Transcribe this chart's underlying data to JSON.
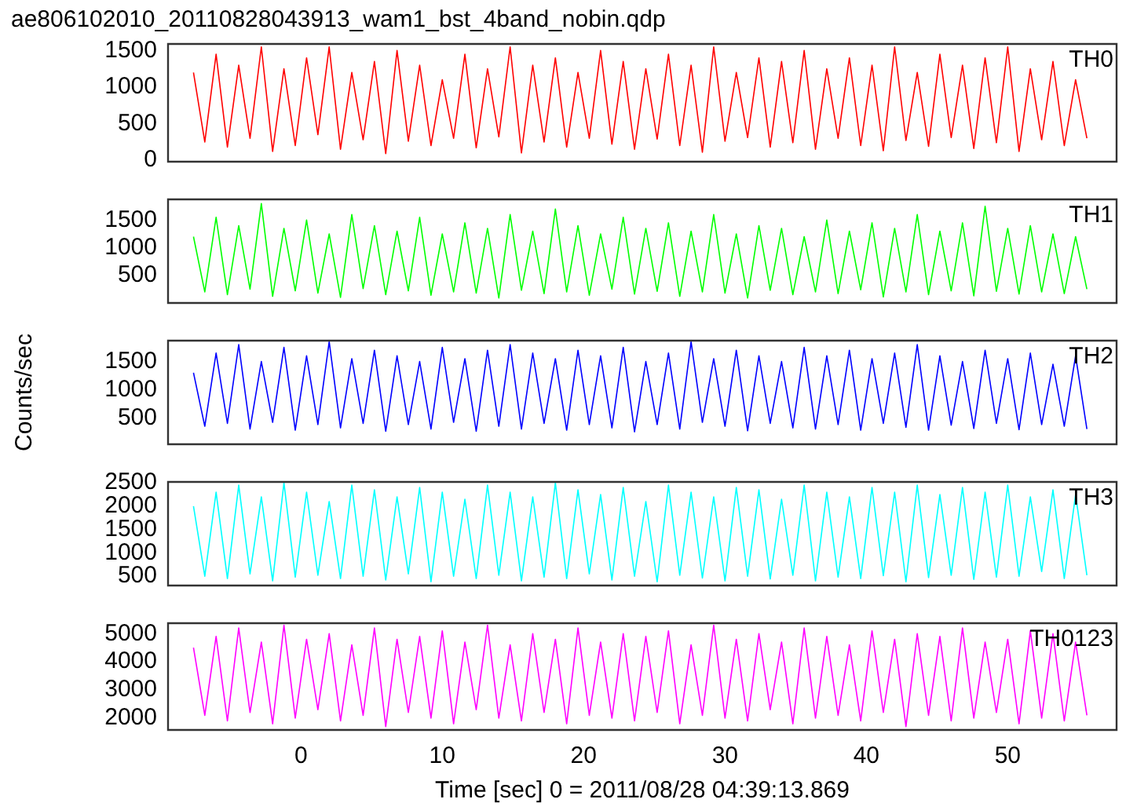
{
  "chart_data": [
    {
      "type": "line",
      "title": "ae806102010_20110828043913_wam1_bst_4band_nobin.qdp",
      "annotations": [
        "TH0"
      ],
      "tick_labels": "y",
      "xlim": [
        -9.4,
        57.7
      ],
      "xticks": [
        0,
        10,
        20,
        30,
        40,
        50
      ],
      "ylim": [
        -20,
        1590
      ],
      "yticks": [
        0,
        500,
        1000,
        1500
      ],
      "x": [
        -7.6,
        -6.8,
        -6,
        -5.2,
        -4.4,
        -3.6,
        -2.8,
        -2,
        -1.2,
        -0.4,
        0.4,
        1.2,
        2,
        2.8,
        3.6,
        4.4,
        5.2,
        6,
        6.8,
        7.6,
        8.4,
        9.2,
        10,
        10.8,
        11.6,
        12.4,
        13.2,
        14,
        14.8,
        15.6,
        16.4,
        17.2,
        18,
        18.8,
        19.6,
        20.4,
        21.2,
        22,
        22.8,
        23.6,
        24.4,
        25.2,
        26,
        26.8,
        27.6,
        28.4,
        29.2,
        30,
        30.8,
        31.6,
        32.4,
        33.2,
        34,
        34.8,
        35.6,
        36.4,
        37.2,
        38,
        38.8,
        39.6,
        40.4,
        41.2,
        42,
        42.8,
        43.6,
        44.4,
        45.2,
        46,
        46.8,
        47.6,
        48.4,
        49.2,
        50,
        50.8,
        51.6,
        52.4,
        53.2,
        54,
        54.8,
        55.6
      ],
      "series": [
        {
          "color": "#ff0000",
          "values": [
            1200,
            250,
            1450,
            180,
            1300,
            300,
            1550,
            120,
            1250,
            200,
            1400,
            350,
            1550,
            150,
            1200,
            280,
            1350,
            90,
            1500,
            260,
            1300,
            200,
            1100,
            300,
            1450,
            170,
            1250,
            320,
            1550,
            100,
            1300,
            250,
            1400,
            180,
            1200,
            300,
            1500,
            220,
            1350,
            150,
            1250,
            290,
            1450,
            200,
            1300,
            110,
            1550,
            260,
            1200,
            310,
            1400,
            180,
            1350,
            240,
            1500,
            150,
            1250,
            300,
            1400,
            200,
            1300,
            130,
            1550,
            270,
            1200,
            190,
            1450,
            310,
            1300,
            160,
            1400,
            240,
            1550,
            120,
            1250,
            280,
            1350,
            200,
            1100,
            300
          ]
        }
      ]
    },
    {
      "type": "line",
      "annotations": [
        "TH1"
      ],
      "tick_labels": "y",
      "xlim": [
        -9.4,
        57.7
      ],
      "xticks": [
        0,
        10,
        20,
        30,
        40,
        50
      ],
      "ylim": [
        0,
        1875
      ],
      "yticks": [
        500,
        1000,
        1500
      ],
      "x": [
        -7.6,
        -6.8,
        -6,
        -5.2,
        -4.4,
        -3.6,
        -2.8,
        -2,
        -1.2,
        -0.4,
        0.4,
        1.2,
        2,
        2.8,
        3.6,
        4.4,
        5.2,
        6,
        6.8,
        7.6,
        8.4,
        9.2,
        10,
        10.8,
        11.6,
        12.4,
        13.2,
        14,
        14.8,
        15.6,
        16.4,
        17.2,
        18,
        18.8,
        19.6,
        20.4,
        21.2,
        22,
        22.8,
        23.6,
        24.4,
        25.2,
        26,
        26.8,
        27.6,
        28.4,
        29.2,
        30,
        30.8,
        31.6,
        32.4,
        33.2,
        34,
        34.8,
        35.6,
        36.4,
        37.2,
        38,
        38.8,
        39.6,
        40.4,
        41.2,
        42,
        42.8,
        43.6,
        44.4,
        45.2,
        46,
        46.8,
        47.6,
        48.4,
        49.2,
        50,
        50.8,
        51.6,
        52.4,
        53.2,
        54,
        54.8,
        55.6
      ],
      "series": [
        {
          "color": "#00ff00",
          "values": [
            1200,
            200,
            1550,
            150,
            1400,
            250,
            1800,
            120,
            1350,
            220,
            1500,
            180,
            1250,
            100,
            1600,
            260,
            1400,
            150,
            1300,
            220,
            1550,
            140,
            1250,
            200,
            1450,
            180,
            1350,
            90,
            1600,
            230,
            1300,
            170,
            1700,
            200,
            1400,
            140,
            1250,
            250,
            1550,
            160,
            1350,
            210,
            1450,
            120,
            1300,
            200,
            1600,
            180,
            1250,
            90,
            1400,
            230,
            1350,
            150,
            1200,
            200,
            1500,
            170,
            1300,
            240,
            1450,
            110,
            1350,
            200,
            1600,
            150,
            1300,
            220,
            1450,
            130,
            1750,
            210,
            1350,
            160,
            1400,
            200,
            1250,
            170,
            1200,
            250
          ]
        }
      ]
    },
    {
      "type": "line",
      "annotations": [
        "TH2"
      ],
      "ylabel": "Counts/sec",
      "tick_labels": "y",
      "xlim": [
        -9.4,
        57.7
      ],
      "xticks": [
        0,
        10,
        20,
        30,
        40,
        50
      ],
      "ylim": [
        30,
        1870
      ],
      "yticks": [
        500,
        1000,
        1500
      ],
      "x": [
        -7.6,
        -6.8,
        -6,
        -5.2,
        -4.4,
        -3.6,
        -2.8,
        -2,
        -1.2,
        -0.4,
        0.4,
        1.2,
        2,
        2.8,
        3.6,
        4.4,
        5.2,
        6,
        6.8,
        7.6,
        8.4,
        9.2,
        10,
        10.8,
        11.6,
        12.4,
        13.2,
        14,
        14.8,
        15.6,
        16.4,
        17.2,
        18,
        18.8,
        19.6,
        20.4,
        21.2,
        22,
        22.8,
        23.6,
        24.4,
        25.2,
        26,
        26.8,
        27.6,
        28.4,
        29.2,
        30,
        30.8,
        31.6,
        32.4,
        33.2,
        34,
        34.8,
        35.6,
        36.4,
        37.2,
        38,
        38.8,
        39.6,
        40.4,
        41.2,
        42,
        42.8,
        43.6,
        44.4,
        45.2,
        46,
        46.8,
        47.6,
        48.4,
        49.2,
        50,
        50.8,
        51.6,
        52.4,
        53.2,
        54,
        54.8,
        55.6
      ],
      "series": [
        {
          "color": "#0000ff",
          "values": [
            1300,
            350,
            1650,
            400,
            1800,
            300,
            1500,
            420,
            1750,
            280,
            1600,
            380,
            1850,
            320,
            1550,
            400,
            1700,
            260,
            1600,
            380,
            1500,
            300,
            1750,
            420,
            1550,
            260,
            1700,
            350,
            1800,
            300,
            1650,
            400,
            1550,
            280,
            1700,
            380,
            1600,
            320,
            1750,
            250,
            1500,
            380,
            1650,
            300,
            1850,
            420,
            1550,
            350,
            1700,
            270,
            1600,
            400,
            1500,
            320,
            1750,
            300,
            1600,
            380,
            1700,
            280,
            1550,
            400,
            1650,
            330,
            1800,
            280,
            1600,
            370,
            1500,
            310,
            1700,
            400,
            1550,
            290,
            1650,
            380,
            1450,
            350,
            1600,
            300
          ]
        }
      ]
    },
    {
      "type": "line",
      "annotations": [
        "TH3"
      ],
      "tick_labels": "y",
      "xlim": [
        -9.4,
        57.7
      ],
      "xticks": [
        0,
        10,
        20,
        30,
        40,
        50
      ],
      "ylim": [
        300,
        2520
      ],
      "yticks": [
        500,
        1000,
        1500,
        2000,
        2500
      ],
      "x": [
        -7.6,
        -6.8,
        -6,
        -5.2,
        -4.4,
        -3.6,
        -2.8,
        -2,
        -1.2,
        -0.4,
        0.4,
        1.2,
        2,
        2.8,
        3.6,
        4.4,
        5.2,
        6,
        6.8,
        7.6,
        8.4,
        9.2,
        10,
        10.8,
        11.6,
        12.4,
        13.2,
        14,
        14.8,
        15.6,
        16.4,
        17.2,
        18,
        18.8,
        19.6,
        20.4,
        21.2,
        22,
        22.8,
        23.6,
        24.4,
        25.2,
        26,
        26.8,
        27.6,
        28.4,
        29.2,
        30,
        30.8,
        31.6,
        32.4,
        33.2,
        34,
        34.8,
        35.6,
        36.4,
        37.2,
        38,
        38.8,
        39.6,
        40.4,
        41.2,
        42,
        42.8,
        43.6,
        44.4,
        45.2,
        46,
        46.8,
        47.6,
        48.4,
        49.2,
        50,
        50.8,
        51.6,
        52.4,
        53.2,
        54,
        54.8,
        55.6
      ],
      "series": [
        {
          "color": "#00ffff",
          "values": [
            2000,
            500,
            2300,
            450,
            2450,
            550,
            2200,
            400,
            2500,
            480,
            2300,
            520,
            2100,
            450,
            2450,
            500,
            2350,
            420,
            2200,
            550,
            2400,
            380,
            2300,
            500,
            2150,
            450,
            2450,
            520,
            2300,
            400,
            2200,
            480,
            2500,
            450,
            2350,
            550,
            2250,
            420,
            2400,
            500,
            2100,
            380,
            2450,
            520,
            2300,
            460,
            2200,
            400,
            2400,
            500,
            2350,
            440,
            2150,
            520,
            2450,
            400,
            2300,
            480,
            2200,
            450,
            2400,
            510,
            2300,
            380,
            2450,
            470,
            2250,
            520,
            2400,
            430,
            2300,
            480,
            2450,
            500,
            2200,
            600,
            2350,
            450,
            2250,
            520
          ]
        }
      ]
    },
    {
      "type": "line",
      "annotations": [
        "TH0123"
      ],
      "xlabel": "Time [sec] 0 = 2011/08/28 04:39:13.869",
      "xlim": [
        -9.4,
        57.7
      ],
      "xticks": [
        0,
        10,
        20,
        30,
        40,
        50
      ],
      "ylim": [
        1580,
        5370
      ],
      "yticks": [
        2000,
        3000,
        4000,
        5000
      ],
      "x": [
        -7.6,
        -6.8,
        -6,
        -5.2,
        -4.4,
        -3.6,
        -2.8,
        -2,
        -1.2,
        -0.4,
        0.4,
        1.2,
        2,
        2.8,
        3.6,
        4.4,
        5.2,
        6,
        6.8,
        7.6,
        8.4,
        9.2,
        10,
        10.8,
        11.6,
        12.4,
        13.2,
        14,
        14.8,
        15.6,
        16.4,
        17.2,
        18,
        18.8,
        19.6,
        20.4,
        21.2,
        22,
        22.8,
        23.6,
        24.4,
        25.2,
        26,
        26.8,
        27.6,
        28.4,
        29.2,
        30,
        30.8,
        31.6,
        32.4,
        33.2,
        34,
        34.8,
        35.6,
        36.4,
        37.2,
        38,
        38.8,
        39.6,
        40.4,
        41.2,
        42,
        42.8,
        43.6,
        44.4,
        45.2,
        46,
        46.8,
        47.6,
        48.4,
        49.2,
        50,
        50.8,
        51.6,
        52.4,
        53.2,
        54,
        54.8,
        55.6
      ],
      "series": [
        {
          "color": "#ff00ff",
          "values": [
            4500,
            2100,
            4900,
            1900,
            5200,
            2200,
            4700,
            1800,
            5300,
            2000,
            4800,
            2300,
            5000,
            1900,
            4600,
            2100,
            5200,
            1700,
            4800,
            2200,
            4900,
            2000,
            5100,
            1800,
            4700,
            2300,
            5300,
            2000,
            4600,
            1900,
            5000,
            2200,
            4800,
            1800,
            5200,
            2100,
            4700,
            2000,
            5000,
            1900,
            4900,
            2200,
            5100,
            1800,
            4600,
            2100,
            5300,
            2000,
            4800,
            1900,
            5000,
            2300,
            4700,
            1800,
            5200,
            2000,
            4900,
            2100,
            4600,
            1900,
            5100,
            2200,
            4800,
            1700,
            5000,
            2100,
            4900,
            1900,
            5200,
            2000,
            4700,
            2200,
            4800,
            1800,
            5100,
            2000,
            5000,
            1900,
            4700,
            2100
          ]
        }
      ]
    }
  ]
}
